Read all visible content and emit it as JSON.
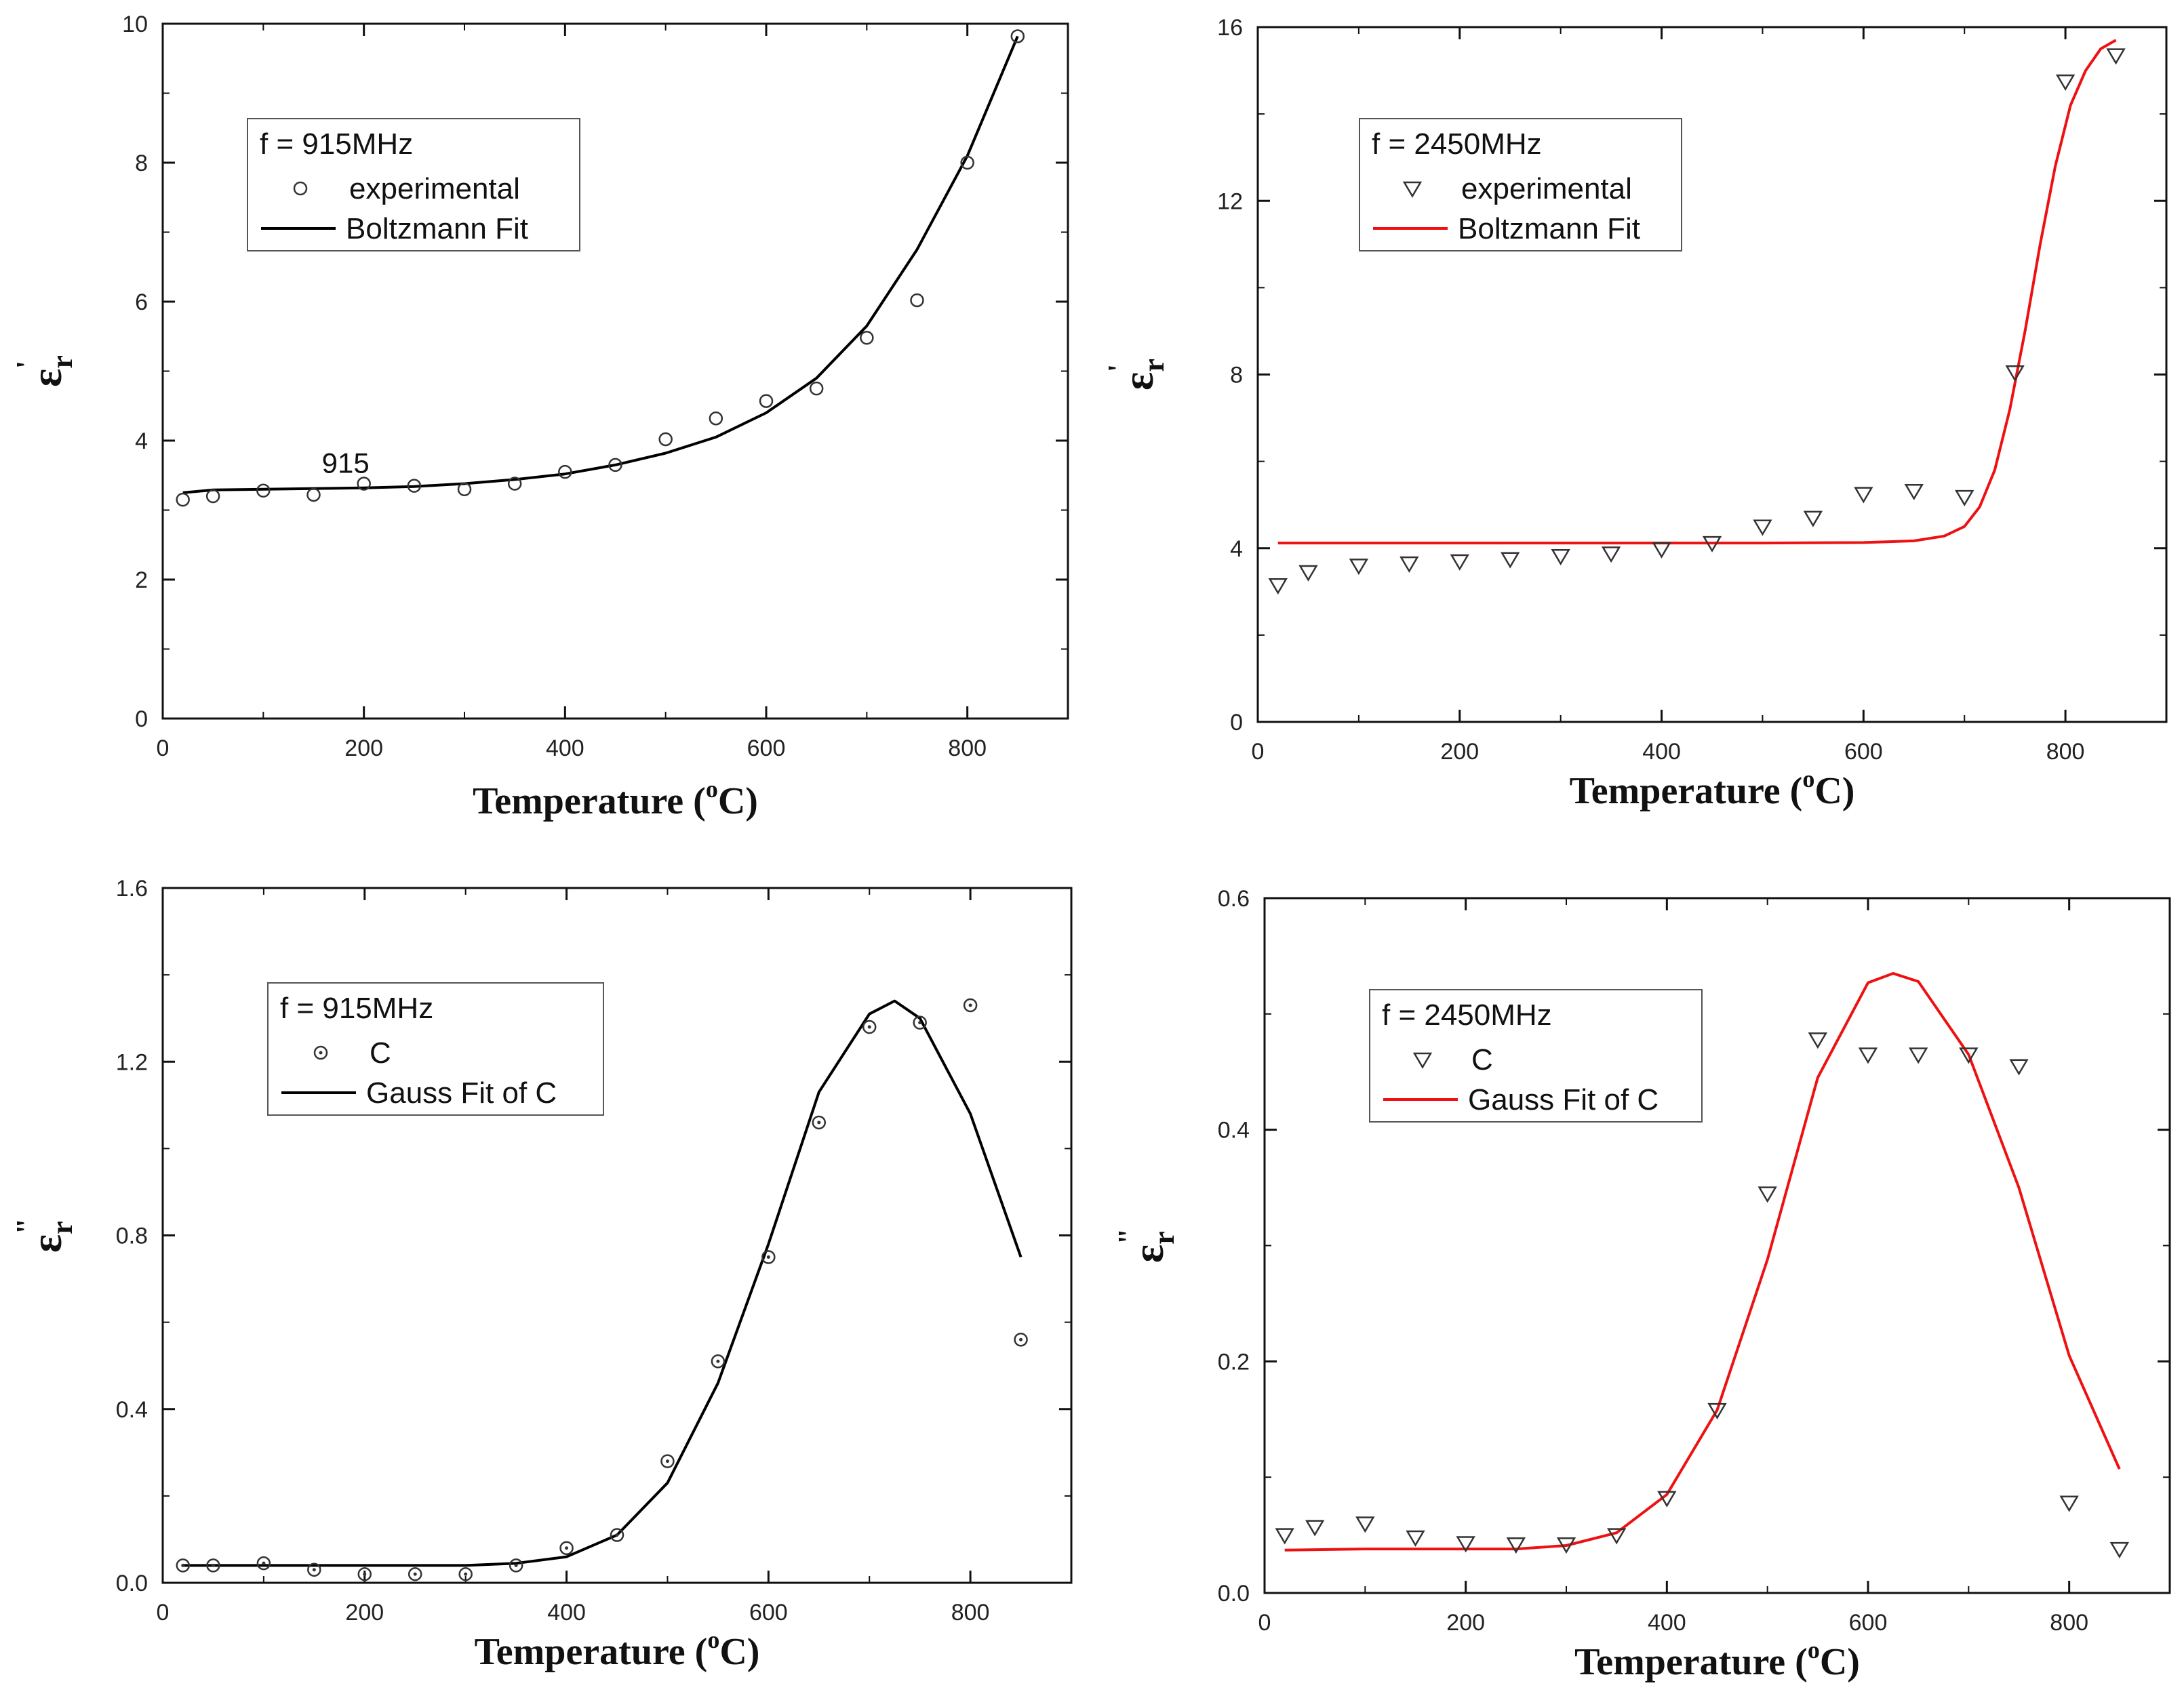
{
  "chart_data": [
    {
      "id": "tl",
      "type": "scatter",
      "title": "",
      "xlabel": "Temperature (°C)",
      "xlabel_main": "Temperature (",
      "xlabel_sup": "o",
      "xlabel_end": "C)",
      "ylabel": "ε_r '",
      "ylabel_main": "ε",
      "ylabel_sub": "r",
      "ylabel_prime": "'",
      "xlim": [
        0,
        900
      ],
      "ylim": [
        0,
        10
      ],
      "xticks": [
        0,
        200,
        400,
        600,
        800
      ],
      "xtick_labels": [
        "0",
        "200",
        "400",
        "600",
        "800"
      ],
      "yticks": [
        0,
        2,
        4,
        6,
        8,
        10
      ],
      "ytick_labels": [
        "0",
        "2",
        "4",
        "6",
        "8",
        "10"
      ],
      "legend": {
        "position": "upper-left",
        "title": "f = 915MHz",
        "marker_label": "experimental",
        "line_label": "Boltzmann Fit"
      },
      "annotation": {
        "text": "915",
        "x": 200,
        "y": 3.4
      },
      "line_color": "#000000",
      "marker": "circle",
      "series": [
        {
          "name": "experimental",
          "x": [
            20,
            50,
            100,
            150,
            200,
            250,
            300,
            350,
            400,
            450,
            500,
            550,
            600,
            650,
            700,
            750,
            800,
            850
          ],
          "y": [
            3.15,
            3.2,
            3.28,
            3.22,
            3.38,
            3.35,
            3.3,
            3.38,
            3.55,
            3.65,
            4.02,
            4.32,
            4.57,
            4.75,
            5.48,
            6.02,
            8.0,
            9.82
          ]
        },
        {
          "name": "Boltzmann Fit",
          "x": [
            20,
            50,
            100,
            150,
            200,
            250,
            300,
            350,
            400,
            450,
            500,
            550,
            600,
            650,
            700,
            750,
            800,
            850
          ],
          "y": [
            3.25,
            3.29,
            3.3,
            3.31,
            3.32,
            3.34,
            3.38,
            3.44,
            3.52,
            3.65,
            3.82,
            4.05,
            4.4,
            4.9,
            5.65,
            6.75,
            8.1,
            9.82
          ]
        }
      ]
    },
    {
      "id": "tr",
      "type": "scatter",
      "title": "",
      "xlabel": "Temperature (°C)",
      "xlabel_main": "Temperature (",
      "xlabel_sup": "o",
      "xlabel_end": "C)",
      "ylabel": "ε_r '",
      "ylabel_main": "ε",
      "ylabel_sub": "r",
      "ylabel_prime": "'",
      "xlim": [
        0,
        900
      ],
      "ylim": [
        0,
        16
      ],
      "xticks": [
        0,
        200,
        400,
        600,
        800
      ],
      "xtick_labels": [
        "0",
        "200",
        "400",
        "600",
        "800"
      ],
      "yticks": [
        0,
        4,
        8,
        12,
        16
      ],
      "ytick_labels": [
        "0",
        "4",
        "8",
        "12",
        "16"
      ],
      "legend": {
        "position": "upper-left",
        "title": "f = 2450MHz",
        "marker_label": "experimental",
        "line_label": "Boltzmann Fit"
      },
      "line_color": "#ee1111",
      "marker": "triangle-down",
      "series": [
        {
          "name": "experimental",
          "x": [
            20,
            50,
            100,
            150,
            200,
            250,
            300,
            350,
            400,
            450,
            500,
            550,
            600,
            650,
            700,
            750,
            800,
            850
          ],
          "y": [
            3.15,
            3.45,
            3.6,
            3.65,
            3.7,
            3.75,
            3.82,
            3.88,
            3.98,
            4.12,
            4.5,
            4.7,
            5.25,
            5.32,
            5.18,
            8.05,
            14.75,
            15.35
          ]
        },
        {
          "name": "Boltzmann Fit",
          "x": [
            20,
            100,
            200,
            300,
            400,
            500,
            600,
            650,
            680,
            700,
            715,
            730,
            745,
            760,
            775,
            790,
            805,
            820,
            835,
            850
          ],
          "y": [
            4.12,
            4.12,
            4.12,
            4.12,
            4.12,
            4.12,
            4.13,
            4.17,
            4.28,
            4.5,
            4.95,
            5.8,
            7.2,
            9.0,
            11.0,
            12.8,
            14.2,
            15.0,
            15.5,
            15.7
          ]
        }
      ]
    },
    {
      "id": "bl",
      "type": "scatter",
      "title": "",
      "xlabel": "Temperature (°C)",
      "xlabel_main": "Temperature (",
      "xlabel_sup": "o",
      "xlabel_end": "C)",
      "ylabel": "ε_r \"",
      "ylabel_main": "ε",
      "ylabel_sub": "r",
      "ylabel_prime": "\"",
      "xlim": [
        0,
        900
      ],
      "ylim": [
        0,
        1.6
      ],
      "xticks": [
        0,
        200,
        400,
        600,
        800
      ],
      "xtick_labels": [
        "0",
        "200",
        "400",
        "600",
        "800"
      ],
      "yticks": [
        0,
        0.4,
        0.8,
        1.2,
        1.6
      ],
      "ytick_labels": [
        "0.0",
        "0.4",
        "0.8",
        "1.2",
        "1.6"
      ],
      "legend": {
        "position": "upper-left",
        "title": "f = 915MHz",
        "marker_label": "C",
        "line_label": "Gauss Fit of C"
      },
      "line_color": "#000000",
      "marker": "circle-dot",
      "series": [
        {
          "name": "C",
          "x": [
            20,
            50,
            100,
            150,
            200,
            250,
            300,
            350,
            400,
            450,
            500,
            550,
            600,
            650,
            700,
            750,
            800,
            850
          ],
          "y": [
            0.04,
            0.04,
            0.045,
            0.03,
            0.02,
            0.02,
            0.02,
            0.04,
            0.08,
            0.11,
            0.28,
            0.51,
            0.75,
            1.06,
            1.28,
            1.29,
            1.33,
            0.56
          ]
        },
        {
          "name": "Gauss Fit of C",
          "x": [
            20,
            100,
            200,
            300,
            350,
            400,
            450,
            500,
            550,
            600,
            650,
            700,
            725,
            750,
            800,
            850
          ],
          "y": [
            0.04,
            0.04,
            0.04,
            0.04,
            0.045,
            0.06,
            0.11,
            0.23,
            0.46,
            0.78,
            1.13,
            1.31,
            1.34,
            1.3,
            1.08,
            0.75
          ]
        }
      ]
    },
    {
      "id": "br",
      "type": "scatter",
      "title": "",
      "xlabel": "Temperature (°C)",
      "xlabel_main": "Temperature (",
      "xlabel_sup": "o",
      "xlabel_end": "C)",
      "ylabel": "ε_r \"",
      "ylabel_main": "ε",
      "ylabel_sub": "r",
      "ylabel_prime": "\"",
      "xlim": [
        0,
        900
      ],
      "ylim": [
        0,
        0.6
      ],
      "xticks": [
        0,
        200,
        400,
        600,
        800
      ],
      "xtick_labels": [
        "0",
        "200",
        "400",
        "600",
        "800"
      ],
      "yticks": [
        0,
        0.2,
        0.4,
        0.6
      ],
      "ytick_labels": [
        "0.0",
        "0.2",
        "0.4",
        "0.6"
      ],
      "legend": {
        "position": "upper-left",
        "title": "f = 2450MHz",
        "marker_label": "C",
        "line_label": "Gauss Fit of C"
      },
      "line_color": "#ee1111",
      "marker": "triangle-down",
      "series": [
        {
          "name": "C",
          "x": [
            20,
            50,
            100,
            150,
            200,
            250,
            300,
            350,
            400,
            450,
            500,
            550,
            600,
            650,
            700,
            750,
            800,
            850
          ],
          "y": [
            0.05,
            0.057,
            0.06,
            0.048,
            0.043,
            0.042,
            0.042,
            0.05,
            0.082,
            0.158,
            0.345,
            0.478,
            0.465,
            0.465,
            0.465,
            0.455,
            0.078,
            0.038
          ]
        },
        {
          "name": "Gauss Fit of C",
          "x": [
            20,
            100,
            200,
            250,
            300,
            350,
            400,
            450,
            500,
            550,
            600,
            625,
            650,
            700,
            750,
            800,
            850
          ],
          "y": [
            0.037,
            0.038,
            0.038,
            0.038,
            0.041,
            0.052,
            0.085,
            0.158,
            0.288,
            0.445,
            0.527,
            0.535,
            0.528,
            0.465,
            0.35,
            0.205,
            0.107
          ]
        }
      ]
    }
  ]
}
